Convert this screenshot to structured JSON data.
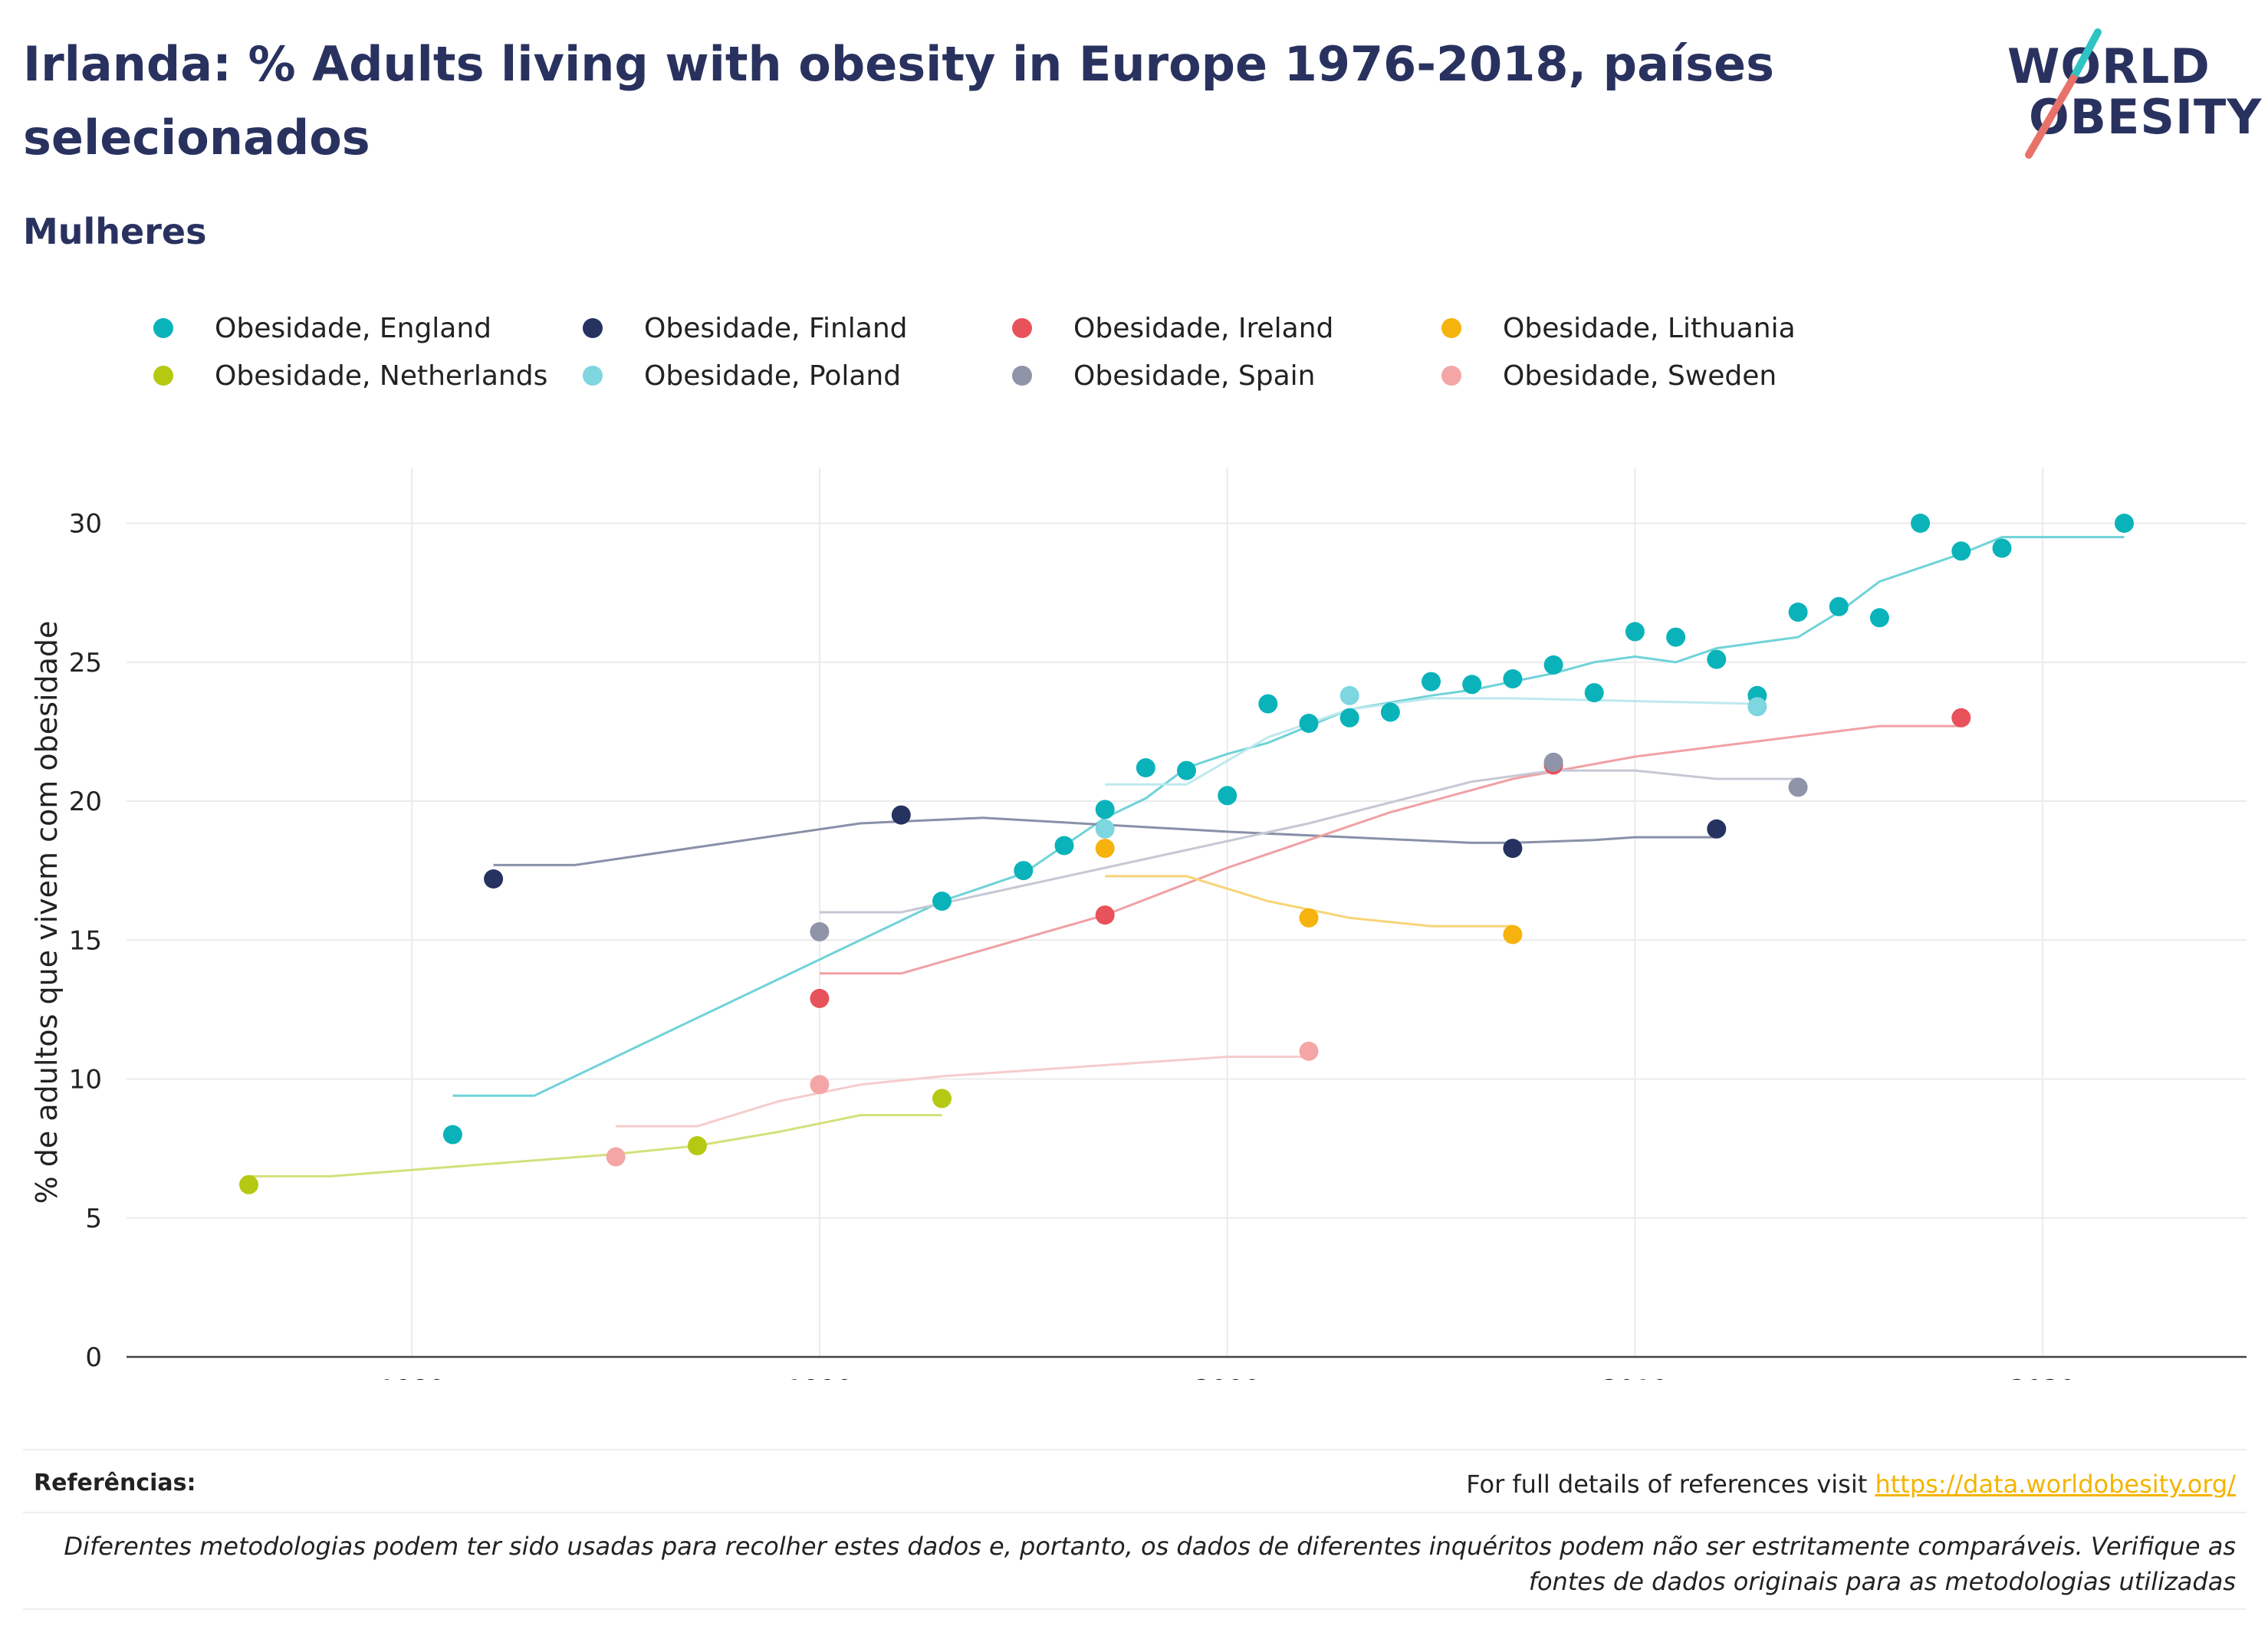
{
  "title": "Irlanda: % Adults living with obesity in Europe 1976-2018, países selecionados",
  "subtitle": "Mulheres",
  "logo": {
    "line1": "WORLD",
    "line2": "OBESITY",
    "accent_teal": "#2ec4c4",
    "accent_coral": "#e8726a"
  },
  "legend": [
    {
      "label": "Obesidade, England",
      "color": "#0ab3ba"
    },
    {
      "label": "Obesidade, Finland",
      "color": "#263361"
    },
    {
      "label": "Obesidade, Ireland",
      "color": "#e8525a"
    },
    {
      "label": "Obesidade, Lithuania",
      "color": "#f6b30d"
    },
    {
      "label": "Obesidade, Netherlands",
      "color": "#b5c912"
    },
    {
      "label": "Obesidade, Poland",
      "color": "#7dd6e0"
    },
    {
      "label": "Obesidade, Spain",
      "color": "#8f94a9"
    },
    {
      "label": "Obesidade, Sweden",
      "color": "#f4a6a6"
    }
  ],
  "chart_data": {
    "type": "scatter",
    "xlabel": "",
    "ylabel": "% de adultos que vivem com obesidade",
    "xlim": [
      1973,
      2025
    ],
    "ylim": [
      0,
      32
    ],
    "xticks": [
      1980,
      1990,
      2000,
      2010,
      2020
    ],
    "yticks": [
      0,
      5,
      10,
      15,
      20,
      25,
      30
    ],
    "grid": true,
    "legend_position": "top",
    "series": [
      {
        "name": "Obesidade, England",
        "color": "#0ab3ba",
        "trend_color": "#6fd3d8",
        "points": [
          [
            1981,
            8.0
          ],
          [
            1993,
            16.4
          ],
          [
            1995,
            17.5
          ],
          [
            1996,
            18.4
          ],
          [
            1997,
            19.7
          ],
          [
            1998,
            21.2
          ],
          [
            1999,
            21.1
          ],
          [
            2000,
            20.2
          ],
          [
            2001,
            23.5
          ],
          [
            2002,
            22.8
          ],
          [
            2003,
            23.0
          ],
          [
            2004,
            23.2
          ],
          [
            2005,
            24.3
          ],
          [
            2006,
            24.2
          ],
          [
            2007,
            24.4
          ],
          [
            2008,
            24.9
          ],
          [
            2009,
            23.9
          ],
          [
            2010,
            26.1
          ],
          [
            2011,
            25.9
          ],
          [
            2012,
            25.1
          ],
          [
            2013,
            23.8
          ],
          [
            2014,
            26.8
          ],
          [
            2015,
            27.0
          ],
          [
            2016,
            26.6
          ],
          [
            2017,
            30.0
          ],
          [
            2018,
            29.0
          ],
          [
            2019,
            29.1
          ],
          [
            2022,
            30.0
          ]
        ],
        "trend": [
          [
            1981,
            9.4
          ],
          [
            1983,
            9.4
          ],
          [
            1993,
            16.4
          ],
          [
            1995,
            17.4
          ],
          [
            1997,
            19.4
          ],
          [
            1998,
            20.1
          ],
          [
            1999,
            21.2
          ],
          [
            2000,
            21.7
          ],
          [
            2001,
            22.1
          ],
          [
            2002,
            22.7
          ],
          [
            2003,
            23.3
          ],
          [
            2005,
            23.8
          ],
          [
            2006,
            24.0
          ],
          [
            2007,
            24.3
          ],
          [
            2008,
            24.6
          ],
          [
            2009,
            25.0
          ],
          [
            2010,
            25.2
          ],
          [
            2011,
            25.0
          ],
          [
            2012,
            25.5
          ],
          [
            2014,
            25.9
          ],
          [
            2015,
            26.8
          ],
          [
            2016,
            27.9
          ],
          [
            2018,
            28.9
          ],
          [
            2019,
            29.5
          ],
          [
            2022,
            29.5
          ]
        ]
      },
      {
        "name": "Obesidade, Finland",
        "color": "#263361",
        "trend_color": "#8990a8",
        "points": [
          [
            1982,
            17.2
          ],
          [
            1992,
            19.5
          ],
          [
            2007,
            18.3
          ],
          [
            2012,
            19.0
          ]
        ],
        "trend": [
          [
            1982,
            17.7
          ],
          [
            1984,
            17.7
          ],
          [
            1991,
            19.2
          ],
          [
            1994,
            19.4
          ],
          [
            2000,
            18.9
          ],
          [
            2006,
            18.5
          ],
          [
            2007,
            18.5
          ],
          [
            2009,
            18.6
          ],
          [
            2010,
            18.7
          ],
          [
            2012,
            18.7
          ]
        ]
      },
      {
        "name": "Obesidade, Ireland",
        "color": "#e8525a",
        "trend_color": "#f0a0a4",
        "points": [
          [
            1990,
            12.9
          ],
          [
            1997,
            15.9
          ],
          [
            2008,
            21.3
          ],
          [
            2018,
            23.0
          ]
        ],
        "trend": [
          [
            1990,
            13.8
          ],
          [
            1992,
            13.8
          ],
          [
            1997,
            15.9
          ],
          [
            2000,
            17.6
          ],
          [
            2004,
            19.6
          ],
          [
            2007,
            20.8
          ],
          [
            2010,
            21.6
          ],
          [
            2016,
            22.7
          ],
          [
            2018,
            22.7
          ]
        ]
      },
      {
        "name": "Obesidade, Lithuania",
        "color": "#f6b30d",
        "trend_color": "#f8d477",
        "points": [
          [
            1997,
            18.3
          ],
          [
            2002,
            15.8
          ],
          [
            2007,
            15.2
          ]
        ],
        "trend": [
          [
            1997,
            17.3
          ],
          [
            1999,
            17.3
          ],
          [
            2001,
            16.4
          ],
          [
            2003,
            15.8
          ],
          [
            2005,
            15.5
          ],
          [
            2007,
            15.5
          ]
        ]
      },
      {
        "name": "Obesidade, Netherlands",
        "color": "#b5c912",
        "trend_color": "#d4e07a",
        "points": [
          [
            1976,
            6.2
          ],
          [
            1987,
            7.6
          ],
          [
            1993,
            9.3
          ]
        ],
        "trend": [
          [
            1976,
            6.5
          ],
          [
            1978,
            6.5
          ],
          [
            1985,
            7.3
          ],
          [
            1987,
            7.6
          ],
          [
            1989,
            8.1
          ],
          [
            1991,
            8.7
          ],
          [
            1993,
            8.7
          ]
        ]
      },
      {
        "name": "Obesidade, Poland",
        "color": "#7dd6e0",
        "trend_color": "#bde9ee",
        "points": [
          [
            1997,
            19.0
          ],
          [
            2003,
            23.8
          ],
          [
            2013,
            23.4
          ]
        ],
        "trend": [
          [
            1997,
            20.6
          ],
          [
            1999,
            20.6
          ],
          [
            2001,
            22.3
          ],
          [
            2003,
            23.3
          ],
          [
            2005,
            23.7
          ],
          [
            2007,
            23.7
          ],
          [
            2013,
            23.5
          ]
        ]
      },
      {
        "name": "Obesidade, Spain",
        "color": "#8f94a9",
        "trend_color": "#c5c8d4",
        "points": [
          [
            1990,
            15.3
          ],
          [
            2008,
            21.4
          ],
          [
            2014,
            20.5
          ]
        ],
        "trend": [
          [
            1990,
            16.0
          ],
          [
            1992,
            16.0
          ],
          [
            1997,
            17.6
          ],
          [
            2002,
            19.2
          ],
          [
            2006,
            20.7
          ],
          [
            2008,
            21.1
          ],
          [
            2010,
            21.1
          ],
          [
            2012,
            20.8
          ],
          [
            2014,
            20.8
          ]
        ]
      },
      {
        "name": "Obesidade, Sweden",
        "color": "#f4a6a6",
        "trend_color": "#f6cccc",
        "points": [
          [
            1985,
            7.2
          ],
          [
            1990,
            9.8
          ],
          [
            2002,
            11.0
          ]
        ],
        "trend": [
          [
            1985,
            8.3
          ],
          [
            1987,
            8.3
          ],
          [
            1989,
            9.2
          ],
          [
            1991,
            9.8
          ],
          [
            1993,
            10.1
          ],
          [
            2000,
            10.8
          ],
          [
            2002,
            10.8
          ]
        ]
      }
    ]
  },
  "footer": {
    "references_label": "Referências:",
    "references_text": "For full details of references visit ",
    "references_url": "https://data.worldobesity.org/",
    "disclaimer": "Diferentes metodologias podem ter sido usadas para recolher estes dados e, portanto, os dados de diferentes inquéritos podem não ser estritamente comparáveis. Verifique as fontes de dados originais para as metodologias utilizadas"
  }
}
